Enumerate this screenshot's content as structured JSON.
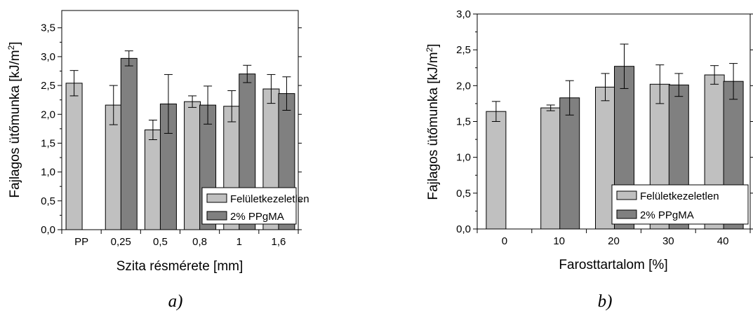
{
  "chart_data": [
    {
      "type": "bar",
      "caption": "a)",
      "xlabel": "Szita résmérete [mm]",
      "ylabel": "Fajlagos ütőmunka [kJ/m",
      "ylabel_sup": "2",
      "ylabel_end": "]",
      "ylim": [
        0,
        3.8
      ],
      "yticks": [
        "0,0",
        "0,5",
        "1,0",
        "1,5",
        "2,0",
        "2,5",
        "3,0",
        "3,5"
      ],
      "ytick_values": [
        0,
        0.5,
        1.0,
        1.5,
        2.0,
        2.5,
        3.0,
        3.5
      ],
      "categories": [
        "PP",
        "0,25",
        "0,5",
        "0,8",
        "1",
        "1,6"
      ],
      "legend_position": "bottom-right",
      "series": [
        {
          "name": "Felületkezeletlen",
          "color": "#c0c0c0",
          "values": [
            2.54,
            2.16,
            1.73,
            2.22,
            2.14,
            2.44
          ],
          "errors": [
            0.22,
            0.34,
            0.17,
            0.1,
            0.27,
            0.25
          ]
        },
        {
          "name": "2% PPgMA",
          "color": "#808080",
          "values": [
            null,
            2.97,
            2.18,
            2.16,
            2.7,
            2.36
          ],
          "errors": [
            null,
            0.13,
            0.51,
            0.33,
            0.15,
            0.29
          ]
        }
      ]
    },
    {
      "type": "bar",
      "caption": "b)",
      "xlabel": "Farosttartalom [%]",
      "ylabel": "Fajlagos ütőmunka [kJ/m",
      "ylabel_sup": "2",
      "ylabel_end": "]",
      "ylim": [
        0,
        3.0
      ],
      "yticks": [
        "0,0",
        "0,5",
        "1,0",
        "1,5",
        "2,0",
        "2,5",
        "3,0"
      ],
      "ytick_values": [
        0,
        0.5,
        1.0,
        1.5,
        2.0,
        2.5,
        3.0
      ],
      "categories": [
        "0",
        "10",
        "20",
        "30",
        "40"
      ],
      "legend_position": "bottom-right",
      "series": [
        {
          "name": "Felületkezeletlen",
          "color": "#c0c0c0",
          "values": [
            1.64,
            1.69,
            1.98,
            2.02,
            2.15
          ],
          "errors": [
            0.14,
            0.04,
            0.19,
            0.27,
            0.13
          ]
        },
        {
          "name": "2% PPgMA",
          "color": "#808080",
          "values": [
            null,
            1.83,
            2.27,
            2.01,
            2.06
          ],
          "errors": [
            null,
            0.24,
            0.31,
            0.16,
            0.25
          ]
        }
      ]
    }
  ]
}
